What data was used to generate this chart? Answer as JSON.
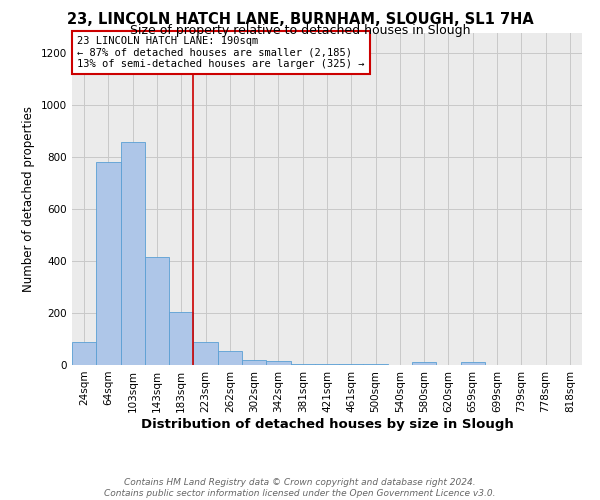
{
  "title": "23, LINCOLN HATCH LANE, BURNHAM, SLOUGH, SL1 7HA",
  "subtitle": "Size of property relative to detached houses in Slough",
  "xlabel": "Distribution of detached houses by size in Slough",
  "ylabel": "Number of detached properties",
  "footnote1": "Contains HM Land Registry data © Crown copyright and database right 2024.",
  "footnote2": "Contains public sector information licensed under the Open Government Licence v3.0.",
  "annotation_line1": "23 LINCOLN HATCH LANE: 190sqm",
  "annotation_line2": "← 87% of detached houses are smaller (2,185)",
  "annotation_line3": "13% of semi-detached houses are larger (325) →",
  "bar_labels": [
    "24sqm",
    "64sqm",
    "103sqm",
    "143sqm",
    "183sqm",
    "223sqm",
    "262sqm",
    "302sqm",
    "342sqm",
    "381sqm",
    "421sqm",
    "461sqm",
    "500sqm",
    "540sqm",
    "580sqm",
    "620sqm",
    "659sqm",
    "699sqm",
    "739sqm",
    "778sqm",
    "818sqm"
  ],
  "bar_values": [
    90,
    780,
    860,
    415,
    205,
    90,
    55,
    20,
    15,
    5,
    5,
    5,
    5,
    0,
    10,
    0,
    10,
    0,
    0,
    0,
    0
  ],
  "bar_color": "#aec6e8",
  "bar_edge_color": "#5a9fd4",
  "vline_index": 5,
  "vline_color": "#cc0000",
  "box_color": "#cc0000",
  "ylim": [
    0,
    1280
  ],
  "yticks": [
    0,
    200,
    400,
    600,
    800,
    1000,
    1200
  ],
  "background_color": "#ebebeb",
  "grid_color": "#c8c8c8",
  "title_fontsize": 10.5,
  "subtitle_fontsize": 9,
  "xlabel_fontsize": 9.5,
  "ylabel_fontsize": 8.5,
  "tick_fontsize": 7.5,
  "annotation_fontsize": 7.5,
  "footnote_fontsize": 6.5
}
